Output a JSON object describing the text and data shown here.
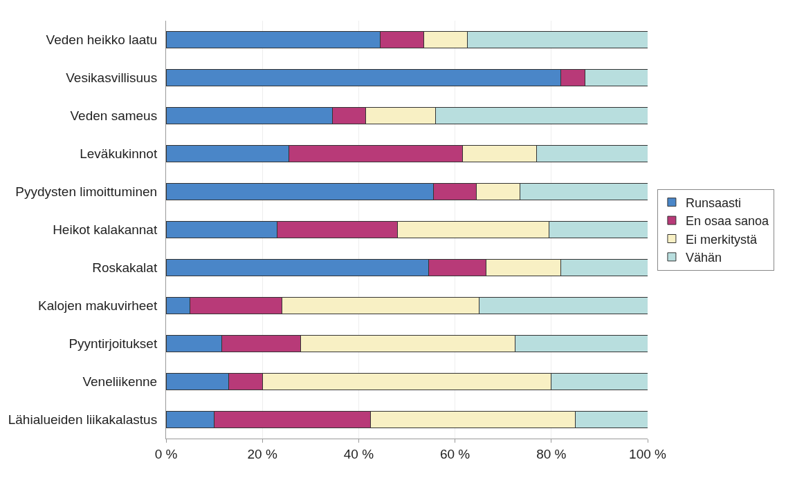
{
  "chart_data": {
    "type": "bar",
    "orientation": "horizontal",
    "stacked": true,
    "categories": [
      "Veden heikko laatu",
      "Vesikasvillisuus",
      "Veden sameus",
      "Leväkukinnot",
      "Pyydysten limoittuminen",
      "Heikot kalakannat",
      "Roskakalat",
      "Kalojen makuvirheet",
      "Pyyntirjoitukset",
      "Veneliikenne",
      "Lähialueiden liikakalastus"
    ],
    "series": [
      {
        "name": "Runsaasti",
        "color": "#4a86c8",
        "values": [
          44.5,
          82,
          34.5,
          25.5,
          55.5,
          23,
          54.5,
          5,
          11.5,
          13,
          10
        ]
      },
      {
        "name": "En osaa sanoa",
        "color": "#b83a78",
        "values": [
          9,
          5,
          7,
          36,
          9,
          25,
          12,
          19,
          16.5,
          7,
          32.5
        ]
      },
      {
        "name": "Ei merkitystä",
        "color": "#f8f0c4",
        "values": [
          9,
          0,
          14.5,
          15.5,
          9,
          31.5,
          15.5,
          41,
          44.5,
          60,
          42.5
        ]
      },
      {
        "name": "Vähän",
        "color": "#b8dede",
        "values": [
          37.5,
          13,
          44,
          23,
          26.5,
          20.5,
          18,
          35,
          27.5,
          20,
          15
        ]
      }
    ],
    "xlim": [
      0,
      100
    ],
    "xticks": [
      {
        "value": 0,
        "label": "0 %"
      },
      {
        "value": 20,
        "label": "20 %"
      },
      {
        "value": 40,
        "label": "40 %"
      },
      {
        "value": 60,
        "label": "60 %"
      },
      {
        "value": 80,
        "label": "80 %"
      },
      {
        "value": 100,
        "label": "100 %"
      }
    ],
    "grid": "x",
    "legend": "right"
  }
}
